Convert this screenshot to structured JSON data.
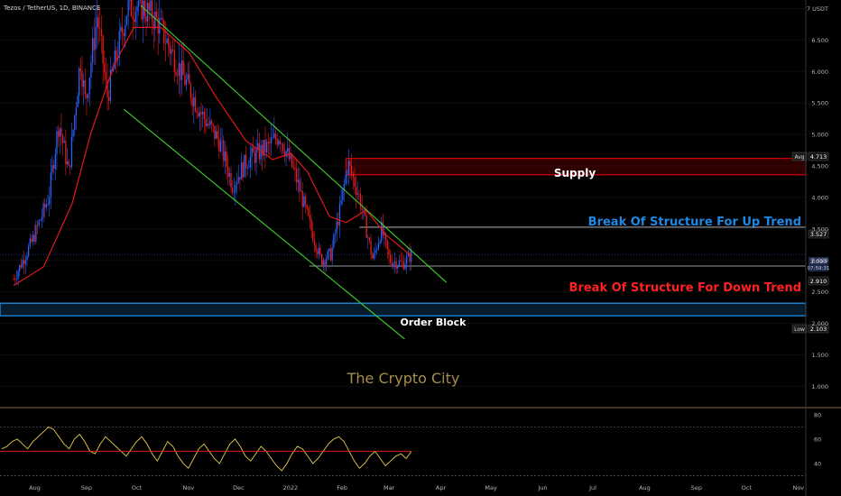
{
  "symbol_header": "Tezos / TetherUS, 1D, BINANCE",
  "colors": {
    "background": "#000000",
    "candle_up": "#2962ff",
    "candle_down": "#ef1a1a",
    "ema": "#e01919",
    "channel": "#3fd12c",
    "supply": "#d50000",
    "order_block": "#2196f3",
    "rsi": "#e8cc4a",
    "rsi_ma": "#e01919",
    "bos_up": "#1e88e5",
    "bos_down": "#ff2020",
    "watermark": "#a88d4d"
  },
  "annotations": {
    "supply": "Supply",
    "bos_up": "Break Of Structure For Up Trend",
    "bos_down": "Break Of Structure For Down Trend",
    "order_block": "Order Block",
    "watermark": "The Crypto City"
  },
  "price_badges": {
    "avg_label": "Avg",
    "avg_value": "4.713",
    "bos_up_value": "3.527",
    "last_price": "3.090",
    "countdown": "07:59:31",
    "bos_down_value": "2.910",
    "low_label": "Low",
    "low_value": "2.103"
  },
  "chart_data": {
    "type": "candlestick",
    "title": "Tezos / TetherUS, 1D, BINANCE",
    "ylabel": "USDT",
    "y_ticks": [
      "7 USDT",
      "6.500",
      "6.000",
      "5.500",
      "5.000",
      "4.500",
      "4.000",
      "3.500",
      "3.000",
      "2.500",
      "2.000",
      "1.500",
      "1.000"
    ],
    "y_tick_values": [
      7,
      6.5,
      6,
      5.5,
      5,
      4.5,
      4,
      3.5,
      3,
      2.5,
      2,
      1.5,
      1
    ],
    "ylim": [
      0.8,
      7.1
    ],
    "x_ticks": [
      "Aug",
      "Sep",
      "Oct",
      "Nov",
      "Dec",
      "2022",
      "Feb",
      "Mar",
      "Apr",
      "May",
      "Jun",
      "Jul",
      "Aug",
      "Sep",
      "Oct",
      "Nov"
    ],
    "price_path": [
      {
        "date": "2021-07-28",
        "close": 2.7
      },
      {
        "date": "2021-08-08",
        "close": 3.3
      },
      {
        "date": "2021-08-18",
        "close": 4.0
      },
      {
        "date": "2021-08-24",
        "close": 5.2
      },
      {
        "date": "2021-08-30",
        "close": 4.4
      },
      {
        "date": "2021-09-06",
        "close": 6.2
      },
      {
        "date": "2021-09-09",
        "close": 5.5
      },
      {
        "date": "2021-09-16",
        "close": 6.9
      },
      {
        "date": "2021-09-22",
        "close": 5.6
      },
      {
        "date": "2021-10-04",
        "close": 7.0
      },
      {
        "date": "2021-10-12",
        "close": 7.05
      },
      {
        "date": "2021-10-22",
        "close": 6.8
      },
      {
        "date": "2021-11-05",
        "close": 6.0
      },
      {
        "date": "2021-11-18",
        "close": 5.3
      },
      {
        "date": "2021-11-28",
        "close": 4.9
      },
      {
        "date": "2021-12-06",
        "close": 4.2
      },
      {
        "date": "2021-12-15",
        "close": 4.6
      },
      {
        "date": "2021-12-27",
        "close": 4.8
      },
      {
        "date": "2022-01-03",
        "close": 5.0
      },
      {
        "date": "2022-01-12",
        "close": 4.4
      },
      {
        "date": "2022-01-22",
        "close": 3.5
      },
      {
        "date": "2022-01-28",
        "close": 3.0
      },
      {
        "date": "2022-02-03",
        "close": 3.1
      },
      {
        "date": "2022-02-09",
        "close": 3.9
      },
      {
        "date": "2022-02-13",
        "close": 4.55
      },
      {
        "date": "2022-02-20",
        "close": 4.0
      },
      {
        "date": "2022-02-28",
        "close": 3.0
      },
      {
        "date": "2022-03-05",
        "close": 3.5
      },
      {
        "date": "2022-03-10",
        "close": 3.0
      },
      {
        "date": "2022-03-18",
        "close": 2.95
      },
      {
        "date": "2022-03-23",
        "close": 3.09
      }
    ],
    "ema_path": [
      {
        "date": "2021-07-28",
        "value": 2.6
      },
      {
        "date": "2021-08-15",
        "value": 2.9
      },
      {
        "date": "2021-09-01",
        "value": 3.9
      },
      {
        "date": "2021-09-12",
        "value": 5.0
      },
      {
        "date": "2021-09-26",
        "value": 6.1
      },
      {
        "date": "2021-10-08",
        "value": 6.7
      },
      {
        "date": "2021-10-24",
        "value": 6.7
      },
      {
        "date": "2021-11-10",
        "value": 6.3
      },
      {
        "date": "2021-11-26",
        "value": 5.6
      },
      {
        "date": "2021-12-14",
        "value": 4.9
      },
      {
        "date": "2021-12-30",
        "value": 4.6
      },
      {
        "date": "2022-01-10",
        "value": 4.7
      },
      {
        "date": "2022-01-20",
        "value": 4.4
      },
      {
        "date": "2022-02-02",
        "value": 3.7
      },
      {
        "date": "2022-02-12",
        "value": 3.6
      },
      {
        "date": "2022-02-24",
        "value": 3.8
      },
      {
        "date": "2022-03-08",
        "value": 3.4
      },
      {
        "date": "2022-03-23",
        "value": 3.07
      }
    ],
    "channel_upper": [
      {
        "date": "2021-10-12",
        "value": 7.05
      },
      {
        "date": "2022-04-13",
        "value": 2.65
      }
    ],
    "channel_lower": [
      {
        "date": "2021-10-02",
        "value": 5.4
      },
      {
        "date": "2022-03-19",
        "value": 1.75
      }
    ],
    "supply_zone": [
      4.36,
      4.62
    ],
    "order_block_zone": [
      2.12,
      2.32
    ],
    "bos_up_level": {
      "from": "2022-02-20",
      "value": 3.527
    },
    "bos_down_level": {
      "from": "2022-01-21",
      "value": 2.91
    },
    "rsi": {
      "y_ticks": [
        "80",
        "60",
        "40"
      ],
      "y_tick_values": [
        80,
        60,
        40
      ],
      "ylim": [
        28,
        83
      ],
      "levels": [
        70,
        30
      ],
      "values": [
        52,
        54,
        58,
        60,
        56,
        52,
        58,
        62,
        66,
        70,
        68,
        62,
        56,
        52,
        60,
        64,
        58,
        50,
        48,
        56,
        62,
        58,
        54,
        50,
        46,
        52,
        58,
        62,
        56,
        48,
        42,
        50,
        58,
        54,
        46,
        40,
        36,
        44,
        52,
        56,
        50,
        44,
        40,
        48,
        56,
        60,
        54,
        46,
        42,
        48,
        54,
        50,
        44,
        38,
        34,
        40,
        48,
        54,
        52,
        46,
        40,
        44,
        50,
        56,
        60,
        62,
        58,
        50,
        42,
        36,
        40,
        46,
        50,
        44,
        38,
        42,
        46,
        48,
        44,
        50
      ],
      "ma_level": 50
    }
  }
}
